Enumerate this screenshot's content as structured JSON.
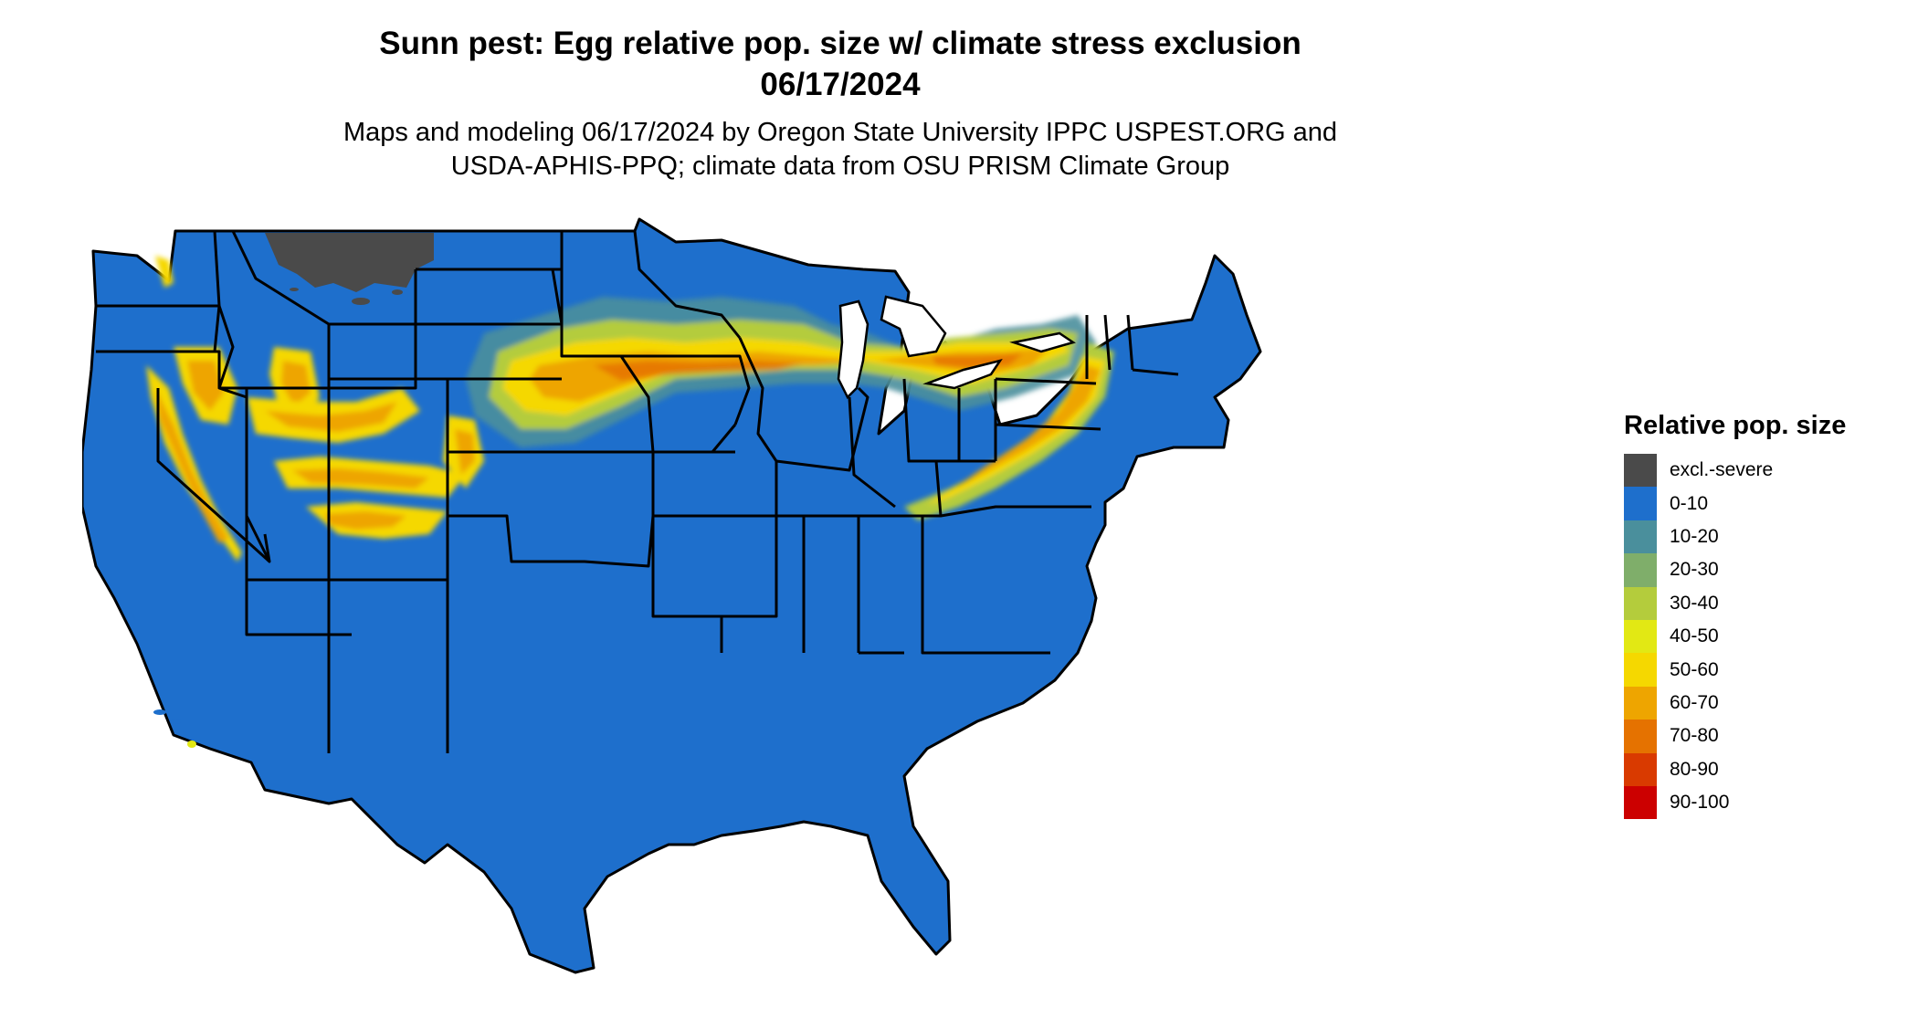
{
  "title": {
    "line1": "Sunn pest: Egg relative pop. size w/ climate stress exclusion",
    "line2": "06/17/2024"
  },
  "subtitle": {
    "line1": "Maps and modeling 06/17/2024 by Oregon State University IPPC USPEST.ORG and",
    "line2": "USDA-APHIS-PPQ; climate data from OSU PRISM Climate Group"
  },
  "legend": {
    "title": "Relative pop. size",
    "items": [
      {
        "label": "excl.-severe",
        "color": "#4a4a4a"
      },
      {
        "label": "0-10",
        "color": "#1e6fcc"
      },
      {
        "label": "10-20",
        "color": "#4a8f9c"
      },
      {
        "label": "20-30",
        "color": "#7fae6a"
      },
      {
        "label": "30-40",
        "color": "#b4cc3c"
      },
      {
        "label": "40-50",
        "color": "#e2e814"
      },
      {
        "label": "50-60",
        "color": "#f5d800"
      },
      {
        "label": "60-70",
        "color": "#eea500"
      },
      {
        "label": "70-80",
        "color": "#e57200"
      },
      {
        "label": "80-90",
        "color": "#d93a00"
      },
      {
        "label": "90-100",
        "color": "#cc0000"
      }
    ]
  },
  "map": {
    "base_color": "#1e6fcc",
    "excluded_color": "#4a4a4a",
    "border_color": "#000000"
  }
}
